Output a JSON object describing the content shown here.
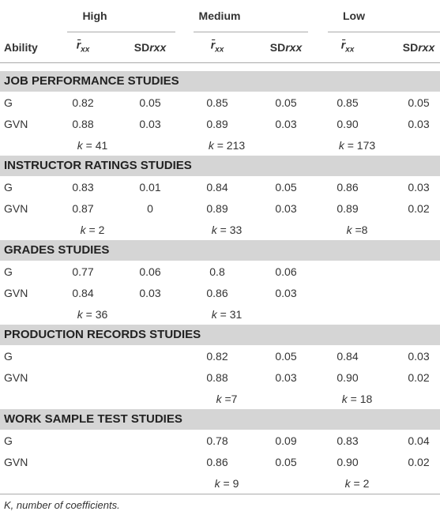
{
  "table": {
    "header": {
      "ability": "Ability",
      "groups": [
        "High",
        "Medium",
        "Low"
      ],
      "mean": {
        "symbol": "r̄",
        "subscript": "xx"
      },
      "sd": {
        "prefix": "SD",
        "symbol": "rxx"
      }
    },
    "sections": [
      {
        "title": "JOB PERFORMANCE STUDIES",
        "rows": [
          [
            "G",
            "0.82",
            "0.05",
            "0.85",
            "0.05",
            "0.85",
            "0.05"
          ],
          [
            "GVN",
            "0.88",
            "0.03",
            "0.89",
            "0.03",
            "0.90",
            "0.03"
          ]
        ],
        "k": [
          "k = 41",
          "k = 213",
          "k = 173"
        ]
      },
      {
        "title": "INSTRUCTOR RATINGS STUDIES",
        "rows": [
          [
            "G",
            "0.83",
            "0.01",
            "0.84",
            "0.05",
            "0.86",
            "0.03"
          ],
          [
            "GVN",
            "0.87",
            "0",
            "0.89",
            "0.03",
            "0.89",
            "0.02"
          ]
        ],
        "k": [
          "k = 2",
          "k = 33",
          "k =8"
        ]
      },
      {
        "title": "GRADES STUDIES",
        "rows": [
          [
            "G",
            "0.77",
            "0.06",
            "0.8",
            "0.06",
            null,
            null
          ],
          [
            "GVN",
            "0.84",
            "0.03",
            "0.86",
            "0.03",
            null,
            null
          ]
        ],
        "k": [
          "k = 36",
          "k = 31",
          null
        ]
      },
      {
        "title": "PRODUCTION RECORDS STUDIES",
        "rows": [
          [
            "G",
            null,
            null,
            "0.82",
            "0.05",
            "0.84",
            "0.03"
          ],
          [
            "GVN",
            null,
            null,
            "0.88",
            "0.03",
            "0.90",
            "0.02"
          ]
        ],
        "k": [
          null,
          "k =7",
          "k = 18"
        ]
      },
      {
        "title": "WORK SAMPLE TEST STUDIES",
        "rows": [
          [
            "G",
            null,
            null,
            "0.78",
            "0.09",
            "0.83",
            "0.04"
          ],
          [
            "GVN",
            null,
            null,
            "0.86",
            "0.05",
            "0.90",
            "0.02"
          ]
        ],
        "k": [
          null,
          "k = 9",
          "k = 2"
        ]
      }
    ]
  },
  "footnote": "K, number of coefficients."
}
